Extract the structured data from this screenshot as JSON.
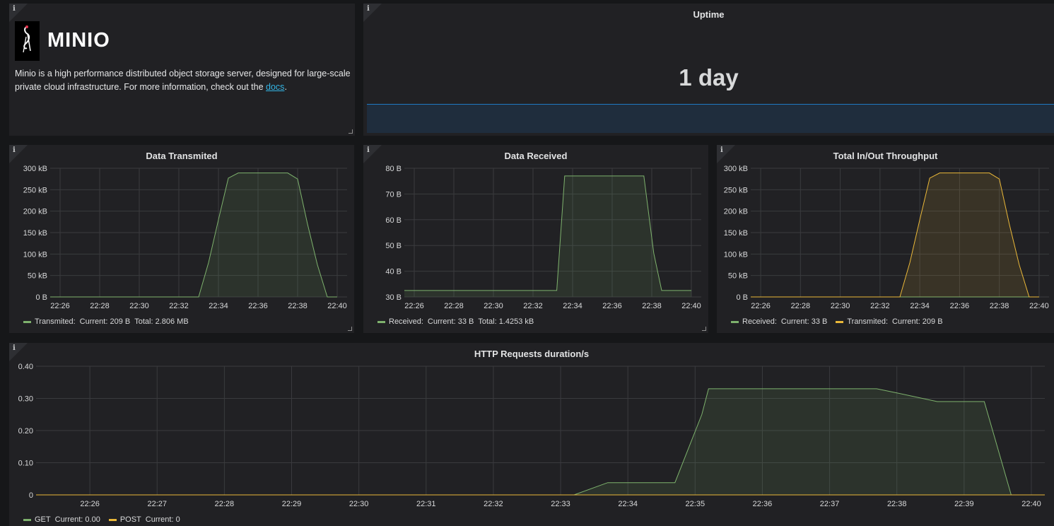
{
  "text_panel": {
    "logo_text": "MINIO",
    "description": "Minio is a high performance distributed object storage server, designed for large-scale private cloud infrastructure. For more information, check out the ",
    "link_text": "docs",
    "trailing": "."
  },
  "uptime_panel": {
    "title": "Uptime",
    "value": "1 day"
  },
  "panels": {
    "transmitted": {
      "title": "Data Transmited",
      "legend": [
        {
          "name": "Transmited:",
          "current": "Current: 209 B",
          "total": "Total: 2.806 MB",
          "color": "#7eb26d"
        }
      ]
    },
    "received": {
      "title": "Data Received",
      "legend": [
        {
          "name": "Received:",
          "current": "Current: 33 B",
          "total": "Total: 1.4253 kB",
          "color": "#7eb26d"
        }
      ]
    },
    "throughput": {
      "title": "Total In/Out Throughput",
      "legend": [
        {
          "name": "Received:",
          "current": "Current: 33 B",
          "color": "#7eb26d"
        },
        {
          "name": "Transmited:",
          "current": "Current: 209 B",
          "color": "#eab839"
        }
      ]
    },
    "http": {
      "title": "HTTP Requests duration/s",
      "legend": [
        {
          "name": "GET",
          "current": "Current: 0.00",
          "color": "#7eb26d"
        },
        {
          "name": "POST",
          "current": "Current: 0",
          "color": "#eab839"
        }
      ]
    }
  },
  "colors": {
    "green": "#7eb26d",
    "yellow": "#eab839",
    "uptime_spark": "#1f78c1"
  },
  "chart_data": [
    {
      "id": "transmitted",
      "type": "area",
      "title": "Data Transmited",
      "x_ticks": [
        "22:26",
        "22:28",
        "22:30",
        "22:32",
        "22:34",
        "22:36",
        "22:38",
        "22:40"
      ],
      "y_ticks": [
        "0 B",
        "50 kB",
        "100 kB",
        "150 kB",
        "200 kB",
        "250 kB",
        "300 kB"
      ],
      "ylim": [
        0,
        300
      ],
      "xlim": [
        "22:25.5",
        "22:40.5"
      ],
      "series": [
        {
          "name": "Transmited",
          "color": "#7eb26d",
          "x": [
            25.5,
            33.0,
            33.5,
            34.0,
            34.5,
            35.0,
            36.0,
            37.0,
            37.5,
            38.0,
            38.5,
            39.0,
            39.5,
            40.0
          ],
          "y": [
            0,
            0,
            80,
            180,
            277,
            289,
            289,
            289,
            289,
            275,
            170,
            75,
            0,
            0
          ]
        }
      ]
    },
    {
      "id": "received",
      "type": "area",
      "title": "Data Received",
      "x_ticks": [
        "22:26",
        "22:28",
        "22:30",
        "22:32",
        "22:34",
        "22:36",
        "22:38",
        "22:40"
      ],
      "y_ticks": [
        "30 B",
        "40 B",
        "50 B",
        "60 B",
        "70 B",
        "80 B"
      ],
      "ylim": [
        30,
        80
      ],
      "xlim": [
        "22:25.5",
        "22:40.5"
      ],
      "series": [
        {
          "name": "Received",
          "color": "#7eb26d",
          "x": [
            25.5,
            33.2,
            33.6,
            34.0,
            36.0,
            37.6,
            38.1,
            38.5,
            40.0
          ],
          "y": [
            32.5,
            32.5,
            77,
            77,
            77,
            77,
            47,
            32.5,
            32.5
          ]
        }
      ]
    },
    {
      "id": "throughput",
      "type": "area",
      "title": "Total In/Out Throughput",
      "x_ticks": [
        "22:26",
        "22:28",
        "22:30",
        "22:32",
        "22:34",
        "22:36",
        "22:38",
        "22:40"
      ],
      "y_ticks": [
        "0 B",
        "50 kB",
        "100 kB",
        "150 kB",
        "200 kB",
        "250 kB",
        "300 kB"
      ],
      "ylim": [
        0,
        300
      ],
      "xlim": [
        "22:25.5",
        "22:40.5"
      ],
      "series": [
        {
          "name": "Received",
          "color": "#7eb26d",
          "x": [
            25.5,
            40.0
          ],
          "y": [
            0,
            0
          ]
        },
        {
          "name": "Transmited",
          "color": "#eab839",
          "x": [
            25.5,
            33.0,
            33.5,
            34.0,
            34.5,
            35.0,
            36.0,
            37.0,
            37.5,
            38.0,
            38.5,
            39.0,
            39.5,
            40.0
          ],
          "y": [
            0,
            0,
            80,
            180,
            277,
            289,
            289,
            289,
            289,
            275,
            170,
            75,
            0,
            0
          ]
        }
      ]
    },
    {
      "id": "http",
      "type": "area",
      "title": "HTTP Requests duration/s",
      "x_ticks": [
        "22:26",
        "22:27",
        "22:28",
        "22:29",
        "22:30",
        "22:31",
        "22:32",
        "22:33",
        "22:34",
        "22:35",
        "22:36",
        "22:37",
        "22:38",
        "22:39",
        "22:40"
      ],
      "y_ticks": [
        "0",
        "0.10",
        "0.20",
        "0.30",
        "0.40"
      ],
      "ylim": [
        0,
        0.4
      ],
      "xlim": [
        "22:25.2",
        "22:40.2"
      ],
      "series": [
        {
          "name": "GET",
          "color": "#7eb26d",
          "x": [
            25.2,
            33.2,
            33.7,
            34.7,
            35.1,
            35.2,
            36.0,
            37.0,
            37.7,
            38.0,
            38.6,
            39.0,
            39.3,
            39.7,
            40.2
          ],
          "y": [
            0,
            0,
            0.038,
            0.038,
            0.25,
            0.33,
            0.33,
            0.33,
            0.33,
            0.317,
            0.29,
            0.29,
            0.29,
            0,
            0
          ]
        },
        {
          "name": "POST",
          "color": "#eab839",
          "x": [
            25.2,
            40.2
          ],
          "y": [
            0,
            0
          ]
        }
      ]
    }
  ]
}
